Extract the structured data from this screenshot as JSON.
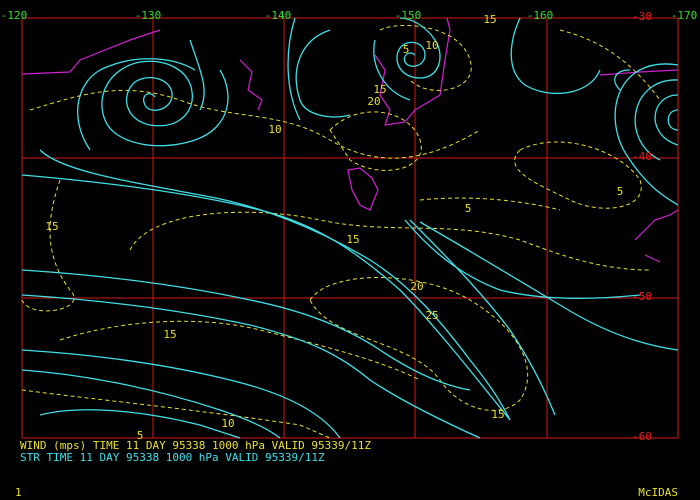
{
  "map": {
    "lon_labels": [
      -120,
      -130,
      -140,
      -150,
      -160,
      -170
    ],
    "lat_labels": [
      -30,
      -40,
      -50,
      -60
    ],
    "contour_labels": [
      15,
      5,
      10,
      15,
      20,
      10,
      15,
      5,
      15,
      5,
      20,
      25,
      15,
      10,
      15,
      5
    ],
    "caption": {
      "wind": "WIND (mps) TIME 11 DAY 95338 1000 hPa VALID 95339/11Z",
      "streamline": "STR TIME 11 DAY 95338 1000 hPa VALID 95339/11Z"
    },
    "footer": {
      "frame": "1",
      "software": "McIDAS"
    }
  }
}
